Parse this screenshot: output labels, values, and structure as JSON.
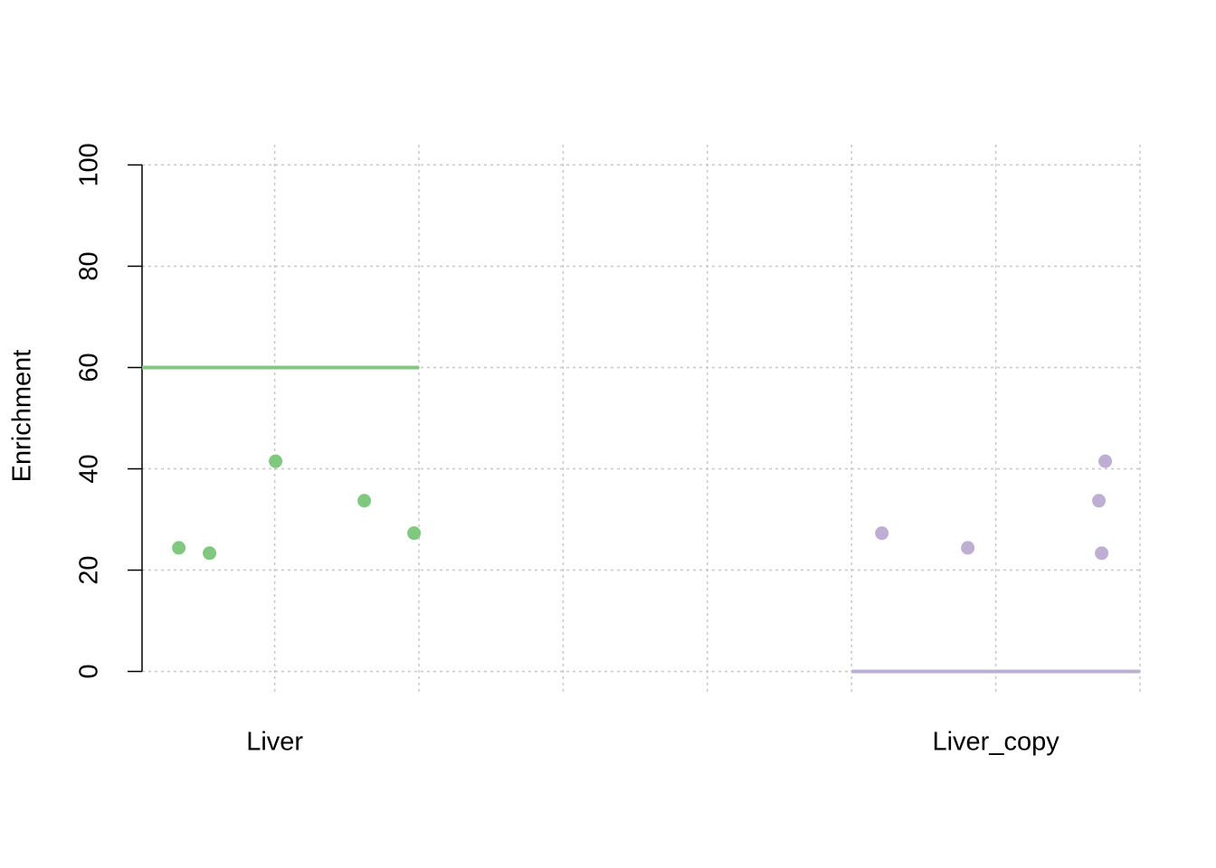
{
  "chart_data": {
    "type": "scatter",
    "ylabel": "Enrichment",
    "xlim": [
      0.08,
      7.0
    ],
    "ylim": [
      -4,
      104
    ],
    "xticks": [
      {
        "value": 1,
        "label": "Liver"
      },
      {
        "value": 2,
        "label": null
      },
      {
        "value": 3,
        "label": null
      },
      {
        "value": 4,
        "label": null
      },
      {
        "value": 5,
        "label": null
      },
      {
        "value": 6,
        "label": "Liver_copy"
      },
      {
        "value": 7,
        "label": null
      }
    ],
    "yticks": [
      0,
      20,
      40,
      60,
      80,
      100
    ],
    "grid": true,
    "series": [
      {
        "color": "#7fc97f",
        "x": [
          0.335,
          0.548,
          1.006,
          1.621,
          1.966
        ],
        "values": [
          24.4,
          23.35,
          41.5,
          33.7,
          27.3
        ],
        "line": {
          "x": [
            0.08,
            2.0
          ],
          "value": 60
        }
      },
      {
        "color": "#beaed4",
        "x": [
          5.21,
          5.806,
          6.715,
          6.734,
          6.759
        ],
        "values": [
          27.3,
          24.4,
          33.7,
          23.35,
          41.5
        ],
        "line": {
          "x": [
            5.0,
            7.0
          ],
          "value": 0
        }
      }
    ]
  }
}
